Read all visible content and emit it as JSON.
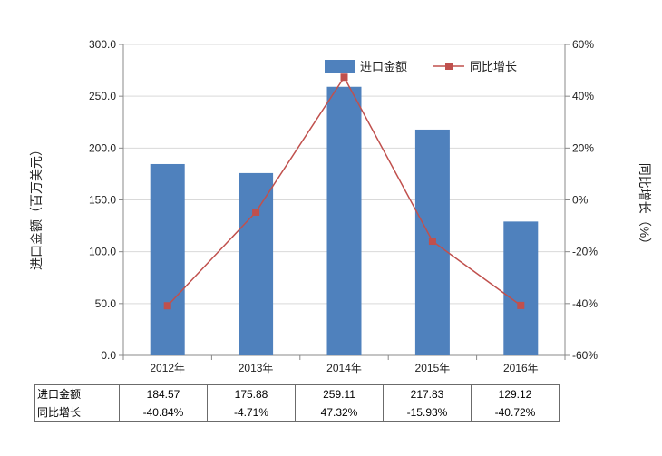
{
  "chart_data": {
    "type": "bar+line",
    "categories": [
      "2012年",
      "2013年",
      "2014年",
      "2015年",
      "2016年"
    ],
    "series": [
      {
        "name": "进口金额",
        "type": "bar",
        "axis": "left",
        "color": "#4f81bd",
        "values": [
          184.57,
          175.88,
          259.11,
          217.83,
          129.12
        ]
      },
      {
        "name": "同比增长",
        "type": "line",
        "axis": "right",
        "color": "#c0504d",
        "values": [
          -40.84,
          -4.71,
          47.32,
          -15.93,
          -40.72
        ]
      }
    ],
    "ylabel": "进口金额（百万美元）",
    "y2label": "同比增长（%）",
    "ylim": [
      0,
      300
    ],
    "y2lim": [
      -60,
      60
    ],
    "yticks": [
      "0.0",
      "50.0",
      "100.0",
      "150.0",
      "200.0",
      "250.0",
      "300.0"
    ],
    "y2ticks": [
      "-60%",
      "-40%",
      "-20%",
      "0%",
      "20%",
      "40%",
      "60%"
    ],
    "legend_position": "top-right",
    "grid": true
  },
  "table": {
    "rows": [
      {
        "label": "进口金额",
        "cells": [
          "184.57",
          "175.88",
          "259.11",
          "217.83",
          "129.12"
        ]
      },
      {
        "label": "同比增长",
        "cells": [
          "-40.84%",
          "-4.71%",
          "47.32%",
          "-15.93%",
          "-40.72%"
        ]
      }
    ]
  }
}
